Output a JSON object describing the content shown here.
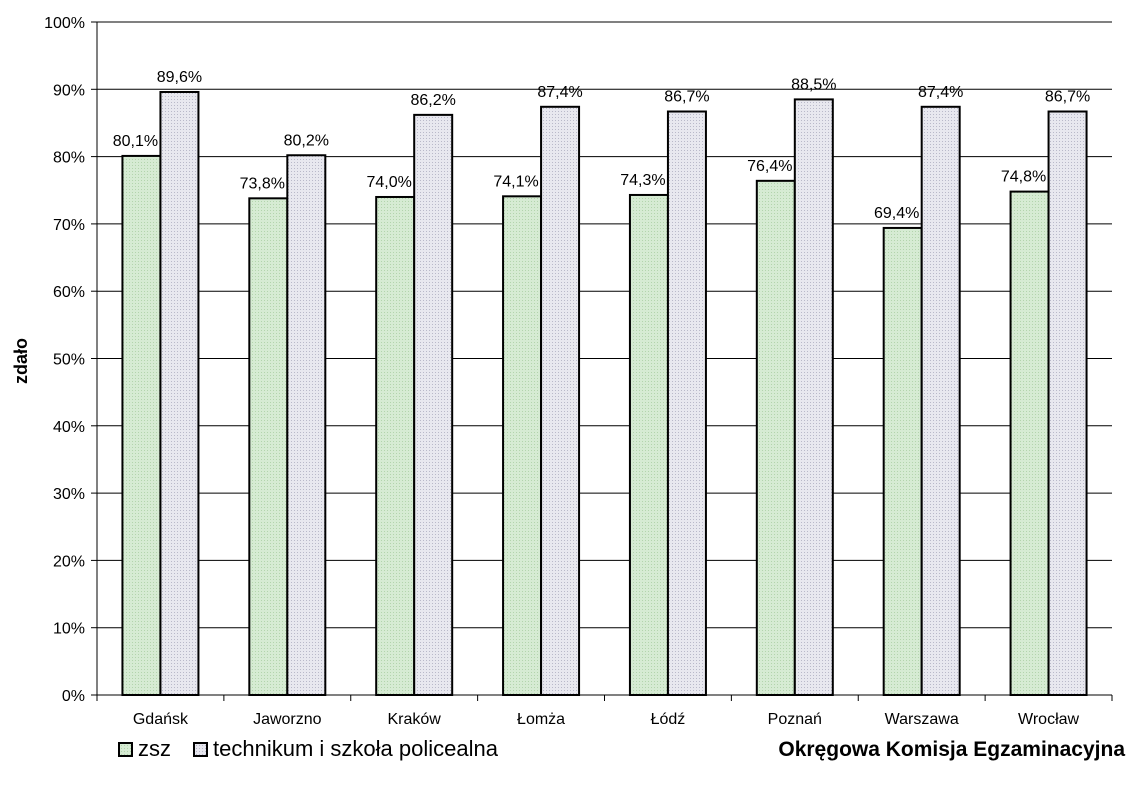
{
  "chart_data": {
    "type": "bar",
    "categories": [
      "Gdańsk",
      "Jaworzno",
      "Kraków",
      "Łomża",
      "Łódź",
      "Poznań",
      "Warszawa",
      "Wrocław"
    ],
    "series": [
      {
        "name": "zsz",
        "values": [
          80.1,
          73.8,
          74.0,
          74.1,
          74.3,
          76.4,
          69.4,
          74.8
        ],
        "labels": [
          "80,1%",
          "73,8%",
          "74,0%",
          "74,1%",
          "74,3%",
          "76,4%",
          "69,4%",
          "74,8%"
        ],
        "color": "#d6ebd3"
      },
      {
        "name": "technikum i szkoła policealna",
        "values": [
          89.6,
          80.2,
          86.2,
          87.4,
          86.7,
          88.5,
          87.4,
          86.7
        ],
        "labels": [
          "89,6%",
          "80,2%",
          "86,2%",
          "87,4%",
          "86,7%",
          "88,5%",
          "87,4%",
          "86,7%"
        ],
        "color": "#e6e6ee"
      }
    ],
    "ylabel": "zdało",
    "xlabel": "",
    "ylim": [
      0,
      100
    ],
    "yticks": [
      "0%",
      "10%",
      "20%",
      "30%",
      "40%",
      "50%",
      "60%",
      "70%",
      "80%",
      "90%",
      "100%"
    ],
    "grid": true,
    "legend": "bottom-left"
  },
  "footer": {
    "credit": "Okręgowa Komisja Egzaminacyjna"
  }
}
